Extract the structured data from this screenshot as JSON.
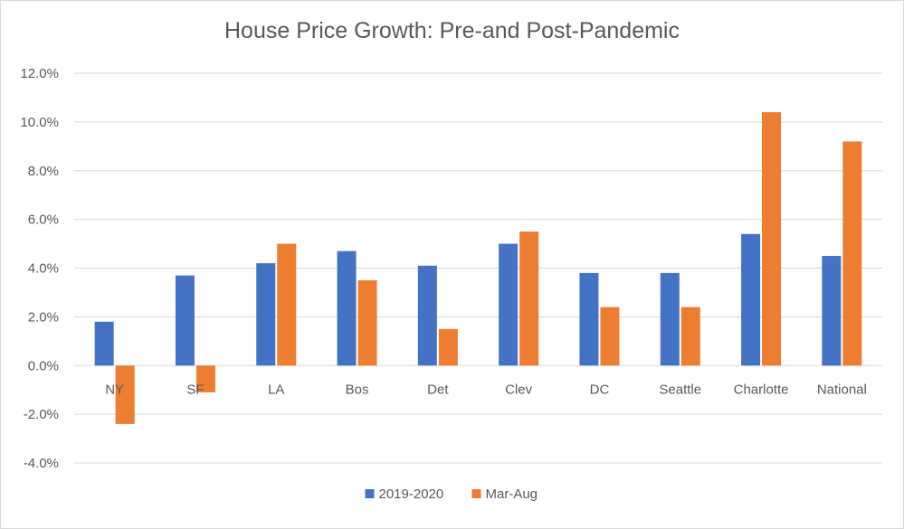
{
  "chart_data": {
    "type": "bar",
    "title": "House Price Growth: Pre-and Post-Pandemic",
    "xlabel": "",
    "ylabel": "",
    "categories": [
      "NY",
      "SF",
      "LA",
      "Bos",
      "Det",
      "Clev",
      "DC",
      "Seattle",
      "Charlotte",
      "National"
    ],
    "series": [
      {
        "name": "2019-2020",
        "color": "#4472c4",
        "values": [
          1.8,
          3.7,
          4.2,
          4.7,
          4.1,
          5.0,
          3.8,
          3.8,
          5.4,
          4.5
        ]
      },
      {
        "name": "Mar-Aug",
        "color": "#ed7d31",
        "values": [
          -2.4,
          -1.1,
          5.0,
          3.5,
          1.5,
          5.5,
          2.4,
          2.4,
          10.4,
          9.2
        ]
      }
    ],
    "ylim": [
      -4.0,
      12.0
    ],
    "yticks": [
      -4.0,
      -2.0,
      0.0,
      2.0,
      4.0,
      6.0,
      8.0,
      10.0,
      12.0
    ],
    "ytick_labels": [
      "-4.0%",
      "-2.0%",
      "0.0%",
      "2.0%",
      "4.0%",
      "6.0%",
      "8.0%",
      "10.0%",
      "12.0%"
    ],
    "grid": true,
    "legend_position": "bottom",
    "gridline_color": "#d9d9d9"
  }
}
